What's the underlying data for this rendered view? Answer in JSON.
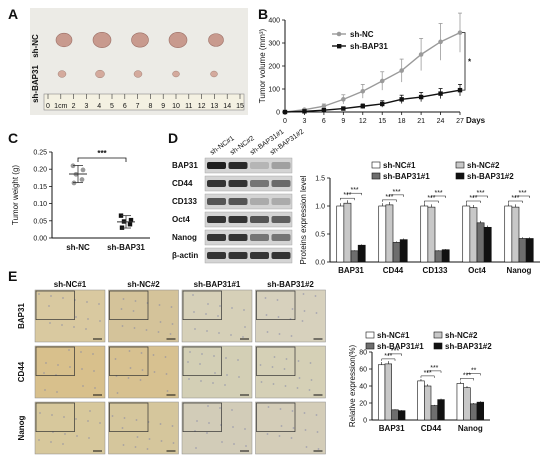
{
  "panels": {
    "A": "A",
    "B": "B",
    "C": "C",
    "D": "D",
    "E": "E"
  },
  "panel_a": {
    "label_top": "sh-NC",
    "label_bottom": "sh-BAP31",
    "ruler_numbers": [
      "0",
      "1cm",
      "2",
      "3",
      "4",
      "5",
      "6",
      "7",
      "8",
      "9",
      "10",
      "11",
      "12",
      "13",
      "14",
      "15"
    ]
  },
  "blot": {
    "groups": [
      "sh-NC#1",
      "sh-NC#2",
      "sh-BAP31#1",
      "sh-BAP31#2"
    ],
    "rows": [
      "BAP31",
      "CD44",
      "CD133",
      "Oct4",
      "Nanog",
      "β-actin"
    ]
  },
  "ihc": {
    "columns": [
      "sh-NC#1",
      "sh-NC#2",
      "sh-BAP31#1",
      "sh-BAP31#2"
    ],
    "rows": [
      "BAP31",
      "CD44",
      "Nanog"
    ]
  },
  "colors": {
    "nc1": "#ffffff",
    "nc2": "#c8c8c8",
    "bap1": "#6e6e6e",
    "bap2": "#111111",
    "nc_line": "#9a9a9a",
    "bap_line": "#111111"
  },
  "chart_data": [
    {
      "panel": "B",
      "type": "line",
      "xlabel": "Days",
      "ylabel": "Tumor volume (mm³)",
      "x": [
        0,
        3,
        6,
        9,
        12,
        15,
        18,
        21,
        24,
        27
      ],
      "xticks": [
        "0",
        "3",
        "6",
        "9",
        "12",
        "15",
        "18",
        "21",
        "24",
        "27"
      ],
      "yticks": [
        "0",
        "100",
        "200",
        "300",
        "400"
      ],
      "ylim": [
        0,
        400
      ],
      "series": [
        {
          "name": "sh-NC",
          "values": [
            0,
            10,
            25,
            55,
            90,
            135,
            180,
            250,
            305,
            345
          ],
          "errors": [
            0,
            5,
            10,
            20,
            30,
            40,
            50,
            70,
            80,
            85
          ]
        },
        {
          "name": "sh-BAP31",
          "values": [
            0,
            3,
            8,
            15,
            25,
            35,
            55,
            65,
            80,
            95
          ],
          "errors": [
            0,
            2,
            4,
            6,
            10,
            14,
            18,
            20,
            22,
            25
          ]
        }
      ],
      "significance": "*"
    },
    {
      "panel": "C",
      "type": "scatter",
      "ylabel": "Tumor weight (g)",
      "categories": [
        "sh-NC",
        "sh-BAP31"
      ],
      "yticks": [
        "0.00",
        "0.05",
        "0.10",
        "0.15",
        "0.20",
        "0.25"
      ],
      "ylim": [
        0,
        0.25
      ],
      "groups": [
        {
          "name": "sh-NC",
          "points": [
            0.21,
            0.198,
            0.185,
            0.17,
            0.16
          ],
          "mean": 0.186,
          "error": 0.025
        },
        {
          "name": "sh-BAP31",
          "points": [
            0.065,
            0.052,
            0.048,
            0.04,
            0.03
          ],
          "mean": 0.047,
          "error": 0.018
        }
      ],
      "significance": "***"
    },
    {
      "panel": "D",
      "type": "bar",
      "ylabel": "Proteins expression level",
      "categories": [
        "BAP31",
        "CD44",
        "CD133",
        "Oct4",
        "Nanog"
      ],
      "yticks": [
        "0.0",
        "0.5",
        "1.0",
        "1.5"
      ],
      "ylim": [
        0,
        1.5
      ],
      "series": [
        {
          "name": "sh-NC#1",
          "values": [
            1.0,
            1.0,
            1.0,
            1.0,
            1.0
          ]
        },
        {
          "name": "sh-NC#2",
          "values": [
            1.05,
            1.02,
            0.98,
            0.97,
            0.98
          ]
        },
        {
          "name": "sh-BAP31#1",
          "values": [
            0.2,
            0.35,
            0.2,
            0.7,
            0.42
          ]
        },
        {
          "name": "sh-BAP31#2",
          "values": [
            0.3,
            0.4,
            0.22,
            0.62,
            0.42
          ]
        }
      ],
      "significance": "***"
    },
    {
      "panel": "E",
      "type": "bar",
      "ylabel": "Relative expression(%)",
      "categories": [
        "BAP31",
        "CD44",
        "Nanog"
      ],
      "yticks": [
        "0",
        "20",
        "40",
        "60",
        "80"
      ],
      "ylim": [
        0,
        80
      ],
      "series": [
        {
          "name": "sh-NC#1",
          "values": [
            65,
            46,
            43
          ]
        },
        {
          "name": "sh-NC#2",
          "values": [
            66,
            40,
            38
          ]
        },
        {
          "name": "sh-BAP31#1",
          "values": [
            12,
            17,
            19
          ]
        },
        {
          "name": "sh-BAP31#2",
          "values": [
            11,
            24,
            21
          ]
        }
      ],
      "significance": [
        "***",
        "***",
        "***",
        "***",
        "***",
        "**"
      ]
    }
  ]
}
